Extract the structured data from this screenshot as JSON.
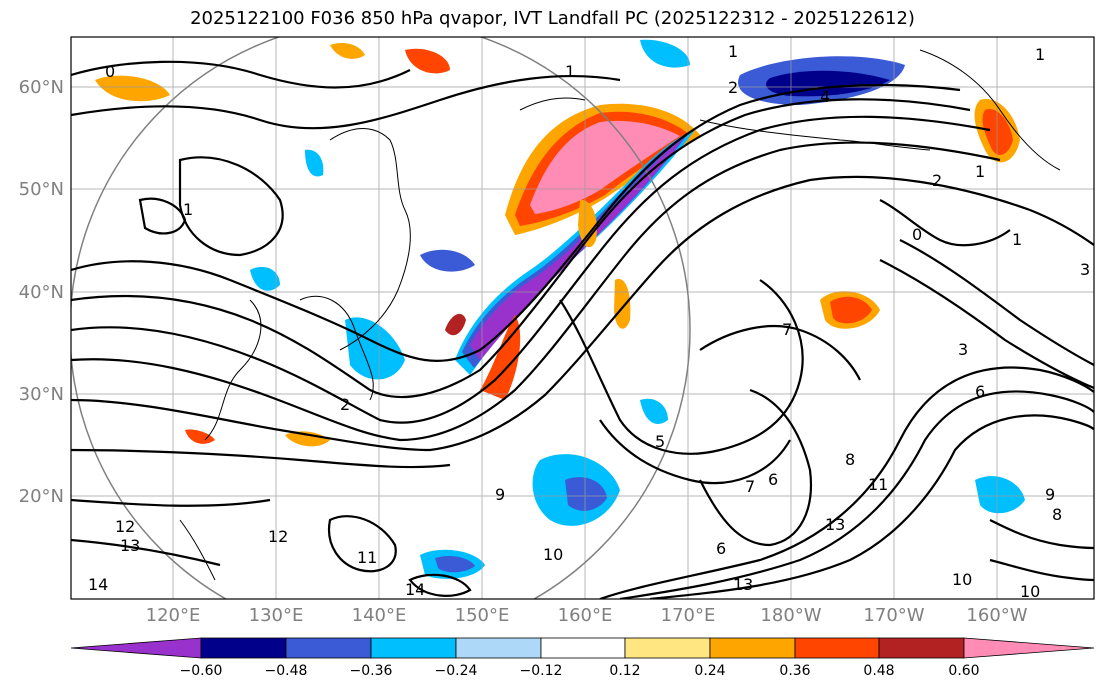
{
  "title": "2025122100 F036 850 hPa qvapor, IVT Landfall PC (2025122312 - 2025122612)",
  "lat_labels": [
    "60°N",
    "50°N",
    "40°N",
    "30°N",
    "20°N"
  ],
  "lon_labels": [
    "120°E",
    "130°E",
    "140°E",
    "150°E",
    "160°E",
    "170°E",
    "180°W",
    "170°W",
    "160°W"
  ],
  "colorbar": {
    "tick_labels": [
      "−0.60",
      "−0.48",
      "−0.36",
      "−0.24",
      "−0.12",
      "0.12",
      "0.24",
      "0.36",
      "0.48",
      "0.60"
    ],
    "colors": [
      "#9932cc",
      "#00008b",
      "#3b5bd6",
      "#00bfff",
      "#add8f7",
      "#ffffff",
      "#ffe680",
      "#ffa500",
      "#ff4500",
      "#b22222",
      "#ff8cb4"
    ]
  },
  "contour_labels": [
    "0",
    "1",
    "1",
    "2",
    "4",
    "1",
    "1",
    "2",
    "0",
    "1",
    "1",
    "2",
    "3",
    "3",
    "6",
    "7",
    "5",
    "6",
    "6",
    "7",
    "8",
    "9",
    "10",
    "11",
    "11",
    "12",
    "12",
    "13",
    "13",
    "13",
    "14",
    "14",
    "10",
    "10",
    "9",
    "8"
  ]
}
